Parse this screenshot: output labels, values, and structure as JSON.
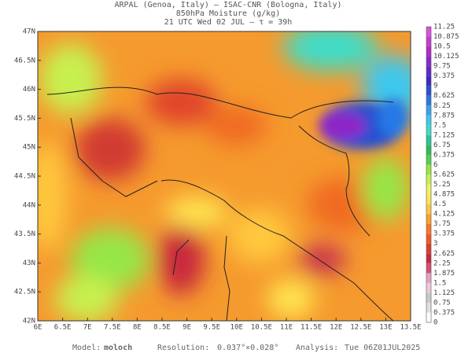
{
  "header": {
    "line1": "ARPAL (Genoa, Italy)  –  ISAC-CNR (Bologna, Italy)",
    "line2": "850hPa Moisture (g/kg)",
    "line3": "21 UTC Wed 02 JUL  –  τ = 39h"
  },
  "map": {
    "lat_labels": [
      "47N",
      "46.5N",
      "46N",
      "45.5N",
      "45N",
      "44.5N",
      "44N",
      "43.5N",
      "43N",
      "42.5N",
      "42N"
    ],
    "lon_labels": [
      "6E",
      "6.5E",
      "7E",
      "7.5E",
      "8E",
      "8.5E",
      "9E",
      "9.5E",
      "10E",
      "10.5E",
      "11E",
      "11.5E",
      "12E",
      "12.5E",
      "13E",
      "13.5E"
    ]
  },
  "colorbar": {
    "labels": [
      0,
      0.375,
      0.75,
      1.125,
      1.5,
      1.875,
      2.25,
      2.625,
      3,
      3.375,
      3.75,
      4.125,
      4.5,
      4.875,
      5.25,
      5.625,
      6,
      6.375,
      6.75,
      7.125,
      7.5,
      7.875,
      8.25,
      8.625,
      9,
      9.375,
      9.75,
      10.125,
      10.5,
      10.875,
      11.25
    ],
    "colors": [
      "#ffffff",
      "#e0e0e0",
      "#c8c8c8",
      "#f0c8dc",
      "#e6a0c8",
      "#d2507a",
      "#c8283c",
      "#e03c28",
      "#f05a1e",
      "#f87828",
      "#ffa028",
      "#ffc83c",
      "#ffe650",
      "#f0f064",
      "#c8f050",
      "#96e646",
      "#50d250",
      "#28be5a",
      "#28c896",
      "#3cdcc8",
      "#3cc8f0",
      "#3ca0f0",
      "#2878e6",
      "#2850d2",
      "#3c28c8",
      "#6428c8",
      "#8c28c8",
      "#b428c8",
      "#c83cd2",
      "#dc50dc"
    ]
  },
  "footer": {
    "model_label": "Model:",
    "model": "moloch",
    "resolution_label": "Resolution:",
    "resolution": "0.037°×0.028°",
    "analysis_label": "Analysis:",
    "analysis": "Tue 06Z01JUL2025"
  }
}
